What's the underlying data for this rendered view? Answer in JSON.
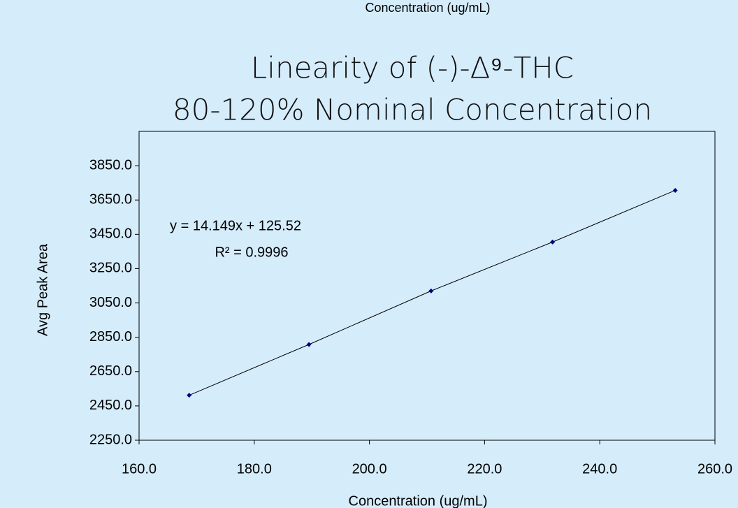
{
  "chart_data": {
    "type": "scatter",
    "header_text": "Concentration (ug/mL)",
    "title": [
      "Linearity of (-)-Δ⁹-THC",
      "80-120% Nominal Concentration"
    ],
    "x_label": "Concentration (ug/mL)",
    "y_label": "Avg Peak Area",
    "annotations": [
      "y = 14.149x + 125.52",
      "R² = 0.9996"
    ],
    "series": [
      {
        "name": "Avg Peak Area",
        "color": "#000080",
        "x": [
          168.7,
          189.5,
          210.7,
          231.8,
          253.1
        ],
        "values": [
          2512,
          2808,
          3120,
          3405,
          3706
        ]
      }
    ],
    "line_color": "#000000",
    "xlim": [
      160,
      260
    ],
    "xticks": [
      {
        "value": 160,
        "label": "160.0"
      },
      {
        "value": 180,
        "label": "180.0"
      },
      {
        "value": 200,
        "label": "200.0"
      },
      {
        "value": 220,
        "label": "220.0"
      },
      {
        "value": 240,
        "label": "240.0"
      },
      {
        "value": 260,
        "label": "260.0"
      }
    ],
    "ylim": [
      2250,
      4050
    ],
    "yticks": [
      {
        "value": 2250,
        "label": "2250.0"
      },
      {
        "value": 2450,
        "label": "2450.0"
      },
      {
        "value": 2650,
        "label": "2650.0"
      },
      {
        "value": 2850,
        "label": "2850.0"
      },
      {
        "value": 3050,
        "label": "3050.0"
      },
      {
        "value": 3250,
        "label": "3250.0"
      },
      {
        "value": 3450,
        "label": "3450.0"
      },
      {
        "value": 3650,
        "label": "3650.0"
      },
      {
        "value": 3850,
        "label": "3850.0"
      }
    ],
    "grid": false
  }
}
